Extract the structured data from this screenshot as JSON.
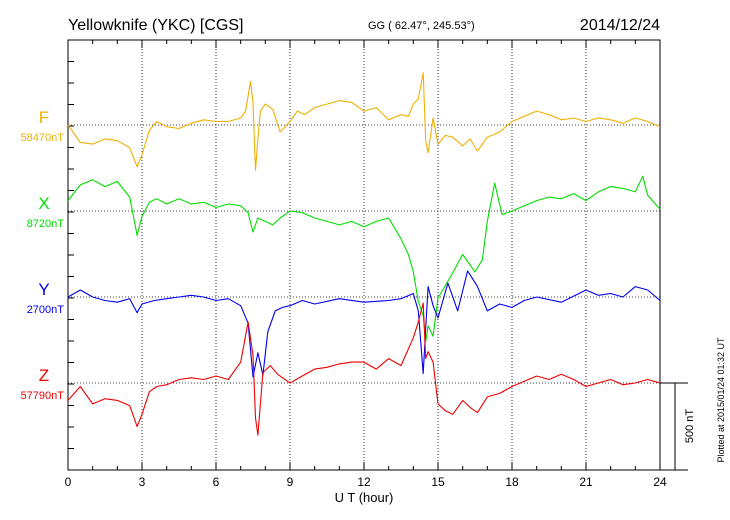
{
  "header": {
    "station": "Yellowknife (YKC)  [CGS]",
    "coords": "GG ( 62.47°, 245.53°)",
    "date": "2014/12/24"
  },
  "footer": {
    "plotted": "Plotted at 2015/01/24 01:32 UT"
  },
  "chart_data": {
    "type": "line",
    "xlabel": "U T (hour)",
    "xlim": [
      0,
      24
    ],
    "xticks": [
      "0",
      "3",
      "6",
      "9",
      "12",
      "15",
      "18",
      "21",
      "24"
    ],
    "scale_bar": {
      "label": "500 nT",
      "value_nT": 500
    },
    "grid": true,
    "series": [
      {
        "name": "F",
        "baseline_label": "58470nT",
        "baseline_nT": 58470,
        "color": "#f0b000",
        "x": [
          0,
          0.5,
          1,
          1.5,
          2,
          2.5,
          2.8,
          3,
          3.3,
          3.6,
          4,
          4.5,
          5,
          5.5,
          6,
          6.5,
          7,
          7.2,
          7.4,
          7.5,
          7.6,
          7.7,
          7.8,
          8,
          8.3,
          8.6,
          9,
          9.3,
          9.6,
          10,
          10.5,
          11,
          11.5,
          12,
          12.5,
          13,
          13.5,
          13.8,
          14,
          14.2,
          14.4,
          14.5,
          14.6,
          14.8,
          15,
          15.3,
          15.6,
          16,
          16.3,
          16.6,
          17,
          17.5,
          18,
          18.5,
          19,
          19.5,
          20,
          20.5,
          21,
          21.5,
          22,
          22.5,
          23,
          23.5,
          24
        ],
        "values": [
          0,
          -100,
          -110,
          -80,
          -90,
          -130,
          -240,
          -170,
          -30,
          20,
          -10,
          -20,
          10,
          30,
          20,
          20,
          40,
          80,
          250,
          130,
          -260,
          -80,
          80,
          120,
          90,
          -40,
          20,
          80,
          60,
          100,
          120,
          140,
          130,
          80,
          100,
          30,
          60,
          50,
          120,
          150,
          300,
          -90,
          -160,
          40,
          -110,
          -60,
          -70,
          -120,
          -80,
          -150,
          -70,
          -40,
          20,
          50,
          80,
          60,
          30,
          40,
          20,
          40,
          30,
          10,
          40,
          20,
          -10
        ]
      },
      {
        "name": "X",
        "baseline_label": "8720nT",
        "baseline_nT": 8720,
        "color": "#00dd00",
        "x": [
          0,
          0.5,
          1,
          1.5,
          2,
          2.5,
          2.8,
          3,
          3.3,
          3.6,
          4,
          4.5,
          5,
          5.5,
          6,
          6.5,
          7,
          7.3,
          7.5,
          7.7,
          8,
          8.3,
          8.6,
          9,
          9.5,
          10,
          10.5,
          11,
          11.5,
          12,
          12.5,
          13,
          13.5,
          13.8,
          14,
          14.2,
          14.4,
          14.5,
          14.6,
          14.8,
          15,
          15.5,
          16,
          16.5,
          16.8,
          17,
          17.3,
          17.6,
          18,
          18.5,
          19,
          19.5,
          20,
          20.5,
          21,
          21.5,
          22,
          22.5,
          23,
          23.3,
          23.5,
          24
        ],
        "values": [
          60,
          150,
          180,
          140,
          170,
          80,
          -140,
          -30,
          50,
          70,
          40,
          70,
          40,
          50,
          20,
          40,
          30,
          -10,
          -120,
          -40,
          -60,
          -80,
          -40,
          0,
          -10,
          -40,
          -60,
          -80,
          -60,
          -90,
          -60,
          -40,
          -160,
          -250,
          -350,
          -520,
          -600,
          -750,
          -660,
          -720,
          -500,
          -380,
          -250,
          -350,
          -280,
          -60,
          160,
          -20,
          0,
          30,
          60,
          80,
          70,
          100,
          60,
          110,
          140,
          130,
          110,
          200,
          90,
          10
        ]
      },
      {
        "name": "Y",
        "baseline_label": "2700nT",
        "baseline_nT": 2700,
        "color": "#0000ee",
        "x": [
          0,
          0.5,
          1,
          1.5,
          2,
          2.5,
          2.8,
          3,
          3.5,
          4,
          4.5,
          5,
          5.5,
          6,
          6.5,
          7,
          7.3,
          7.5,
          7.7,
          7.9,
          8.1,
          8.4,
          8.7,
          9,
          9.5,
          10,
          11,
          12,
          13,
          13.5,
          14,
          14.2,
          14.4,
          14.5,
          14.6,
          14.8,
          15,
          15.4,
          15.8,
          16.2,
          16.6,
          17,
          17.5,
          18,
          18.5,
          19,
          20,
          21,
          21.5,
          22,
          22.5,
          23,
          23.5,
          24
        ],
        "values": [
          0,
          40,
          0,
          -20,
          -30,
          -10,
          -90,
          -40,
          -20,
          -10,
          0,
          10,
          0,
          -20,
          -10,
          -50,
          -150,
          -460,
          -320,
          -450,
          -200,
          -80,
          -60,
          -50,
          -20,
          -40,
          -10,
          -30,
          -20,
          -10,
          20,
          -80,
          -440,
          -180,
          60,
          -50,
          -120,
          80,
          -80,
          150,
          60,
          -80,
          -40,
          -60,
          -20,
          0,
          -30,
          40,
          10,
          20,
          0,
          60,
          40,
          -20
        ]
      },
      {
        "name": "Z",
        "baseline_label": "57790nT",
        "baseline_nT": 57790,
        "color": "#ee0000",
        "x": [
          0,
          0.5,
          1,
          1.5,
          2,
          2.5,
          2.8,
          3,
          3.3,
          3.6,
          4,
          4.5,
          5,
          5.5,
          6,
          6.5,
          7,
          7.3,
          7.5,
          7.6,
          7.7,
          7.9,
          8.2,
          8.5,
          9,
          9.5,
          10,
          10.5,
          11,
          11.5,
          12,
          12.5,
          13,
          13.5,
          14,
          14.2,
          14.4,
          14.5,
          14.6,
          14.8,
          15,
          15.3,
          15.6,
          16,
          16.3,
          16.6,
          17,
          17.5,
          18,
          18.5,
          19,
          19.5,
          20,
          20.5,
          21,
          21.5,
          22,
          22.5,
          23,
          23.5,
          24
        ],
        "values": [
          -100,
          -20,
          -120,
          -90,
          -100,
          -130,
          -250,
          -180,
          -50,
          -20,
          -10,
          20,
          30,
          20,
          40,
          20,
          120,
          350,
          160,
          -200,
          -300,
          60,
          100,
          50,
          0,
          40,
          80,
          90,
          110,
          120,
          120,
          80,
          140,
          100,
          260,
          350,
          460,
          140,
          180,
          120,
          -120,
          -160,
          -180,
          -100,
          -140,
          -170,
          -80,
          -60,
          -20,
          10,
          40,
          20,
          50,
          20,
          -20,
          0,
          20,
          -10,
          0,
          20,
          0
        ]
      }
    ]
  }
}
